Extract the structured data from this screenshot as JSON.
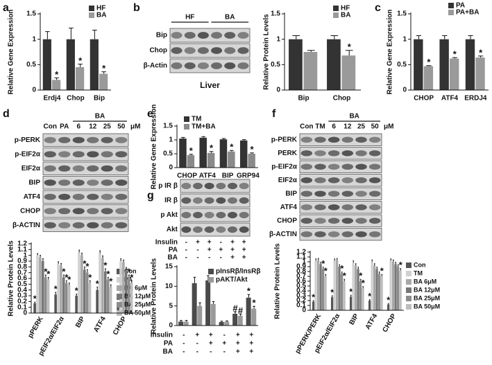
{
  "panel_labels": [
    "a",
    "b",
    "c",
    "d",
    "e",
    "f",
    "g"
  ],
  "blots": [
    {
      "groups": [
        "HF",
        "BA"
      ],
      "rows": [
        "Bip",
        "Chop",
        "β-Actin"
      ],
      "caption": "Liver"
    },
    {
      "lanes": [
        "Con",
        "PA",
        "6",
        "12",
        "25",
        "50"
      ],
      "unit": "μM",
      "groups": [
        "BA"
      ],
      "rows": [
        "p-PERK",
        "p-EIF2α",
        "EIF2α",
        "BIP",
        "ATF4",
        "CHOP",
        "β-ACTIN"
      ]
    },
    {
      "lanes": [
        "Con",
        "TM",
        "6",
        "12",
        "25",
        "50"
      ],
      "unit": "μM",
      "groups": [
        "BA"
      ],
      "rows": [
        "p-PERK",
        "PERK",
        "p-EIF2α",
        "EIF2α",
        "BIP",
        "ATF4",
        "CHOP",
        "β-ACTIN"
      ]
    },
    {
      "rows": [
        "p IR β",
        "IR β",
        "p Akt",
        "Akt"
      ],
      "conditions": [
        {
          "name": "Insulin",
          "values": [
            "-",
            "+",
            "+",
            "-",
            "+",
            "+"
          ]
        },
        {
          "name": "PA",
          "values": [
            "-",
            "-",
            "+",
            "+",
            "+",
            "+"
          ]
        },
        {
          "name": "BA",
          "values": [
            "-",
            "-",
            "-",
            "-",
            "+",
            "+"
          ]
        }
      ]
    }
  ],
  "chart_data": [
    {
      "type": "bar",
      "y_label": "Relative Gene Expression",
      "categories": [
        "Erdj4",
        "Chop",
        "Bip"
      ],
      "series": [
        {
          "name": "HF",
          "color": "#333333",
          "values": [
            1,
            1,
            1
          ],
          "errors": [
            0.15,
            0.22,
            0.18
          ],
          "annotations": [
            null,
            null,
            null
          ]
        },
        {
          "name": "BA",
          "color": "#9a9a9a",
          "values": [
            0.2,
            0.45,
            0.32
          ],
          "errors": [
            0.04,
            0.06,
            0.04
          ],
          "annotations": [
            "*",
            "*",
            "*"
          ]
        }
      ],
      "ylim": [
        0,
        1.5
      ],
      "yticks": [
        0,
        0.5,
        1,
        1.5
      ]
    },
    {
      "type": "bar",
      "y_label": "Relative Protein Levels",
      "categories": [
        "Bip",
        "Chop"
      ],
      "series": [
        {
          "name": "HF",
          "color": "#333333",
          "values": [
            1,
            1
          ],
          "errors": [
            0.07,
            0.07
          ],
          "annotations": [
            null,
            null
          ]
        },
        {
          "name": "BA",
          "color": "#9a9a9a",
          "values": [
            0.75,
            0.68
          ],
          "errors": [
            0.03,
            0.1
          ],
          "annotations": [
            null,
            "*"
          ]
        }
      ],
      "ylim": [
        0,
        1.5
      ],
      "yticks": [
        0,
        0.5,
        1,
        1.5
      ]
    },
    {
      "type": "bar",
      "y_label": "Relative Gene Expression",
      "categories": [
        "CHOP",
        "ATF4",
        "ERDJ4"
      ],
      "series": [
        {
          "name": "PA",
          "color": "#333333",
          "values": [
            1,
            1,
            1
          ],
          "errors": [
            0.07,
            0.07,
            0.07
          ],
          "annotations": [
            null,
            null,
            null
          ]
        },
        {
          "name": "PA+BA",
          "color": "#9a9a9a",
          "values": [
            0.47,
            0.62,
            0.64
          ],
          "errors": [
            0.01,
            0.02,
            0.03
          ],
          "annotations": [
            "*",
            "*",
            "*"
          ]
        }
      ],
      "ylim": [
        0,
        1.5
      ],
      "yticks": [
        0,
        0.5,
        1,
        1.5
      ]
    },
    {
      "type": "bar",
      "y_label": "Relative Protein Levels",
      "categories": [
        "pPERK",
        "pEIF2α/EIF2α",
        "BIP",
        "ATF4",
        "CHOP"
      ],
      "series": [
        {
          "name": "Con",
          "color": "#555555",
          "values": [
            0.17,
            0.32,
            0.3,
            0.4,
            0.15
          ],
          "errors": [
            0.02,
            0.04,
            0.03,
            0.05,
            0.02
          ],
          "annotations": [
            "*",
            "*",
            "*",
            "*",
            "*"
          ]
        },
        {
          "name": "PA",
          "color": "#d0d0d0",
          "values": [
            1,
            0.85,
            1.05,
            1.03,
            0.9
          ],
          "errors": [
            0.03,
            0.04,
            0.04,
            0.05,
            0.04
          ],
          "annotations": [
            null,
            null,
            null,
            null,
            null
          ]
        },
        {
          "name": "BA 6μM",
          "color": "#a8a8a8",
          "values": [
            0.97,
            0.82,
            1,
            0.95,
            0.88
          ],
          "errors": [
            0.03,
            0.04,
            0.04,
            0.04,
            0.04
          ],
          "annotations": [
            null,
            null,
            null,
            null,
            null
          ]
        },
        {
          "name": "BA 12μM",
          "color": "#777777",
          "values": [
            0.9,
            0.62,
            0.75,
            0.72,
            0.75
          ],
          "errors": [
            0.04,
            0.04,
            0.05,
            0.05,
            0.04
          ],
          "annotations": [
            null,
            "*",
            "*",
            "*",
            null
          ]
        },
        {
          "name": "BA 25μM",
          "color": "#8c8c8c",
          "values": [
            0.62,
            0.52,
            0.7,
            0.58,
            0.62
          ],
          "errors": [
            0.04,
            0.04,
            0.05,
            0.04,
            0.04
          ],
          "annotations": [
            "*",
            "*",
            "*",
            "*",
            "*"
          ]
        },
        {
          "name": "BA 50μM",
          "color": "#bdbdbd",
          "values": [
            0.58,
            0.48,
            0.52,
            0.45,
            0.52
          ],
          "errors": [
            0.04,
            0.04,
            0.04,
            0.04,
            0.04
          ],
          "annotations": [
            "*",
            "*",
            "*",
            "*",
            "*"
          ]
        }
      ],
      "ylim": [
        0,
        1.2
      ],
      "yticks": [
        0,
        0.1,
        0.2,
        0.3,
        0.4,
        0.5,
        0.6,
        0.7,
        0.8,
        0.9,
        1,
        1.1,
        1.2
      ]
    },
    {
      "type": "bar",
      "y_label": "Relative Gene Expression",
      "categories": [
        "CHOP",
        "ATF4",
        "BIP",
        "GRP94"
      ],
      "series": [
        {
          "name": "TM",
          "color": "#333333",
          "values": [
            1.05,
            1.08,
            1.02,
            0.98
          ],
          "errors": [
            0.04,
            0.04,
            0.03,
            0.03
          ],
          "annotations": [
            null,
            null,
            null,
            null
          ]
        },
        {
          "name": "TM+BA",
          "color": "#8a8a8a",
          "values": [
            0.45,
            0.53,
            0.58,
            0.5
          ],
          "errors": [
            0.03,
            0.05,
            0.04,
            0.03
          ],
          "annotations": [
            "*",
            "*",
            "*",
            "*"
          ]
        }
      ],
      "ylim": [
        0,
        1.5
      ],
      "yticks": [
        0,
        0.5,
        1,
        1.5
      ]
    },
    {
      "type": "bar",
      "y_label": "Relative Protein Levels",
      "categories": [
        "pPERK/PERK",
        "pEIF2α/EIF2α",
        "BIP",
        "ATF4",
        "CHOP"
      ],
      "series": [
        {
          "name": "Con",
          "color": "#555555",
          "values": [
            0.18,
            0.27,
            0.28,
            0.2,
            0.12
          ],
          "errors": [
            0.02,
            0.03,
            0.03,
            0.02,
            0.02
          ],
          "annotations": [
            "*",
            "*",
            "*",
            "*",
            "*"
          ]
        },
        {
          "name": "TM",
          "color": "#d0d0d0",
          "values": [
            1.02,
            1.02,
            0.98,
            1,
            1.02
          ],
          "errors": [
            0.04,
            0.04,
            0.04,
            0.04,
            0.04
          ],
          "annotations": [
            null,
            null,
            null,
            null,
            null
          ]
        },
        {
          "name": "BA 6μM",
          "color": "#a8a8a8",
          "values": [
            1.03,
            1.03,
            0.92,
            0.92,
            1
          ],
          "errors": [
            0.04,
            0.04,
            0.04,
            0.04,
            0.04
          ],
          "annotations": [
            null,
            null,
            null,
            null,
            null
          ]
        },
        {
          "name": "BA 12μM",
          "color": "#777777",
          "values": [
            0.95,
            0.9,
            0.85,
            0.85,
            0.95
          ],
          "errors": [
            0.04,
            0.04,
            0.04,
            0.04,
            0.04
          ],
          "annotations": [
            null,
            null,
            null,
            null,
            null
          ]
        },
        {
          "name": "BA 25μM",
          "color": "#8c8c8c",
          "values": [
            0.85,
            0.75,
            0.6,
            0.75,
            0.9
          ],
          "errors": [
            0.04,
            0.04,
            0.04,
            0.04,
            0.04
          ],
          "annotations": [
            "*",
            "*",
            "*",
            null,
            null
          ]
        },
        {
          "name": "BA 50μM",
          "color": "#bdbdbd",
          "values": [
            0.7,
            0.6,
            0.45,
            0.7,
            0.82
          ],
          "errors": [
            0.04,
            0.04,
            0.04,
            0.04,
            0.04
          ],
          "annotations": [
            "*",
            "*",
            "*",
            "*",
            "*"
          ]
        }
      ],
      "ylim": [
        0,
        1.2
      ],
      "yticks": [
        0,
        0.1,
        0.2,
        0.3,
        0.4,
        0.5,
        0.6,
        0.7,
        0.8,
        0.9,
        1,
        1.1,
        1.2
      ]
    },
    {
      "type": "bar",
      "y_label": "Relative Protein Levels",
      "categories": [
        null,
        null,
        null,
        null,
        null,
        null
      ],
      "series": [
        {
          "name": "pInsRβ/InsRβ",
          "color": "#4a4a4a",
          "values": [
            1,
            10.8,
            11.5,
            0.9,
            3,
            7.1
          ],
          "errors": [
            0.3,
            1.5,
            1.2,
            0.2,
            0.5,
            0.8
          ],
          "annotations": [
            null,
            null,
            null,
            null,
            "#",
            "*"
          ]
        },
        {
          "name": "pAKT/Akt",
          "color": "#9a9a9a",
          "values": [
            1,
            5,
            5.5,
            1,
            2.5,
            4.3
          ],
          "errors": [
            0.3,
            0.8,
            0.6,
            0.2,
            0.4,
            0.6
          ],
          "annotations": [
            null,
            null,
            null,
            null,
            "#",
            "*"
          ]
        }
      ],
      "conditions": [
        {
          "name": "Insulin",
          "values": [
            "-",
            "+",
            "+",
            "-",
            "+",
            "+"
          ]
        },
        {
          "name": "PA",
          "values": [
            "-",
            "-",
            "+",
            "+",
            "+",
            "+"
          ]
        },
        {
          "name": "BA",
          "values": [
            "-",
            "-",
            "-",
            "-",
            "+",
            "+"
          ]
        }
      ],
      "ylim": [
        0,
        15
      ],
      "yticks": [
        0,
        5,
        10,
        15
      ]
    }
  ]
}
